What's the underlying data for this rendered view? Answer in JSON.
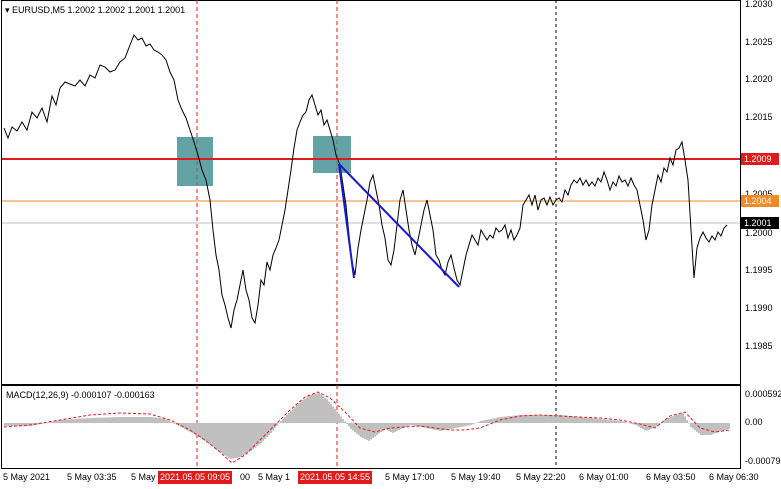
{
  "header": {
    "symbol_line": "EURUSD,M5  1.2002 1.2002 1.2001 1.2001",
    "menu_icon": "triangle-down-icon"
  },
  "price_axis": {
    "ticks": [
      "1.2030",
      "1.2025",
      "1.2020",
      "1.2015",
      "1.2005",
      "1.2000",
      "1.1995",
      "1.1990",
      "1.1985"
    ],
    "price_labels": [
      {
        "text": "1.2009",
        "kind": "resistance",
        "bg": "#e01b1b",
        "fg": "#ffffff"
      },
      {
        "text": "1.2004",
        "kind": "level",
        "bg": "#f08a24",
        "fg": "#ffffff"
      },
      {
        "text": "1.2001",
        "kind": "bid",
        "bg": "#000000",
        "fg": "#ffffff"
      }
    ]
  },
  "macd": {
    "title": "MACD(12,26,9) -0.000107 -0.000163",
    "ticks": [
      "0.000592",
      "0.00",
      "-0.00079"
    ]
  },
  "time_axis": {
    "ticks": [
      "5 May 2021",
      "5 May 03:35",
      "5 May 1",
      "5 May 1",
      "5 May 17:00",
      "5 May 19:40",
      "5 May 22:20",
      "6 May 01:00",
      "6 May 03:50",
      "6 May 06:30"
    ],
    "highlighted": [
      "2021.05.05 09:05",
      "2021.05.05 14:55"
    ],
    "partial_label": "00"
  },
  "colors": {
    "price_line": "#000000",
    "resistance": "#e01b1b",
    "level": "#f08a24",
    "trend": "#1a1acc",
    "zone": "#3c8c8f",
    "histogram": "#c0c0c0",
    "signal": "#e01b1b"
  }
}
